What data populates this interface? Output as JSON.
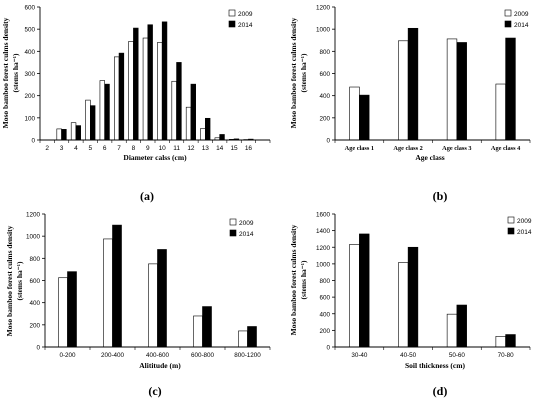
{
  "figure": {
    "chart_data": [
      {
        "id": "a",
        "panel_label": "(a)",
        "type": "bar",
        "categories": [
          "2",
          "3",
          "4",
          "5",
          "6",
          "7",
          "8",
          "9",
          "10",
          "11",
          "12",
          "13",
          "14",
          "15",
          "16"
        ],
        "series": [
          {
            "name": "2009",
            "values": [
              0,
              50,
              78,
              180,
              268,
              375,
              445,
              460,
              440,
              265,
              148,
              52,
              10,
              3,
              2
            ],
            "color": "#ffffff"
          },
          {
            "name": "2014",
            "values": [
              0,
              48,
              65,
              155,
              252,
              392,
              505,
              520,
              533,
              350,
              252,
              98,
              25,
              5,
              4
            ],
            "color": "#000000"
          }
        ],
        "xlabel": "Diameter calss (cm)",
        "ylabel": "Moso bamboo forest culms density",
        "ylabel2": "(stems ha⁻¹)",
        "ylim": [
          0,
          600
        ],
        "yticks": [
          0,
          100,
          200,
          300,
          400,
          500,
          600
        ],
        "grid": false,
        "legend": "top-right"
      },
      {
        "id": "b",
        "panel_label": "(b)",
        "type": "bar",
        "categories": [
          "Age class 1",
          "Age class 2",
          "Age class 3",
          "Age class 4"
        ],
        "series": [
          {
            "name": "2009",
            "values": [
              478,
              895,
              912,
              505
            ],
            "color": "#ffffff"
          },
          {
            "name": "2014",
            "values": [
              405,
              1008,
              880,
              920
            ],
            "color": "#000000"
          }
        ],
        "xlabel": "Age class",
        "ylabel": "Moso bamboo forest culms density",
        "ylabel2": "(stems ha⁻¹)",
        "ylim": [
          0,
          1200
        ],
        "yticks": [
          0,
          200,
          400,
          600,
          800,
          1000,
          1200
        ],
        "grid": false,
        "legend": "top-right"
      },
      {
        "id": "c",
        "panel_label": "(c)",
        "type": "bar",
        "categories": [
          "0-200",
          "200-400",
          "400-600",
          "600-800",
          "800-1200"
        ],
        "series": [
          {
            "name": "2009",
            "values": [
              625,
              975,
              750,
              280,
              145
            ],
            "color": "#ffffff"
          },
          {
            "name": "2014",
            "values": [
              680,
              1100,
              880,
              365,
              185
            ],
            "color": "#000000"
          }
        ],
        "xlabel": "Alititude  (m)",
        "ylabel": "Moso bamboo forest culms density",
        "ylabel2": "(stems ha⁻¹)",
        "ylim": [
          0,
          1200
        ],
        "yticks": [
          0,
          200,
          400,
          600,
          800,
          1000,
          1200
        ],
        "grid": false,
        "legend": "top-right"
      },
      {
        "id": "d",
        "panel_label": "(d)",
        "type": "bar",
        "categories": [
          "30-40",
          "40-50",
          "50-60",
          "70-80"
        ],
        "series": [
          {
            "name": "2009",
            "values": [
              1235,
              1015,
              395,
              128
            ],
            "color": "#ffffff"
          },
          {
            "name": "2014",
            "values": [
              1360,
              1200,
              505,
              150
            ],
            "color": "#000000"
          }
        ],
        "xlabel": "Soil thickness (cm)",
        "ylabel": "Moso bamboo forest culms density",
        "ylabel2": "(stems ha⁻¹)",
        "ylim": [
          0,
          1600
        ],
        "yticks": [
          0,
          200,
          400,
          600,
          800,
          1000,
          1200,
          1400,
          1600
        ],
        "grid": false,
        "legend": "top-right"
      }
    ]
  }
}
